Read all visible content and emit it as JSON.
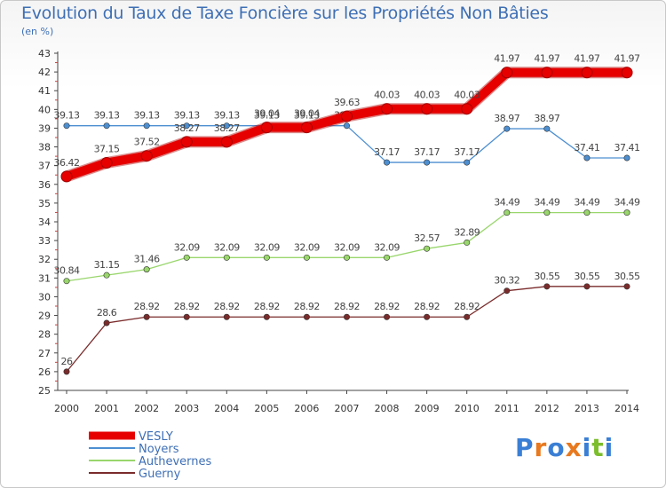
{
  "header": {
    "title": "Evolution du Taux de Taxe Foncière sur les Propriétés Non Bâties",
    "subtitle": "(en %)"
  },
  "logo": {
    "letters": [
      "P",
      "r",
      "o",
      "x",
      "i",
      "t",
      "i"
    ],
    "colors": [
      "#3a7fd5",
      "#e8791e",
      "#3a7fd5",
      "#e8791e",
      "#3a7fd5",
      "#7bbd2b",
      "#3a7fd5"
    ]
  },
  "chart_data": {
    "type": "line",
    "title": "Evolution du Taux de Taxe Foncière sur les Propriétés Non Bâties",
    "ylabel": "(en %)",
    "xlabel": "",
    "ylim": [
      25,
      43
    ],
    "yticks": [
      "25",
      "26",
      "27",
      "28",
      "29",
      "30",
      "31",
      "32",
      "33",
      "34",
      "35",
      "36",
      "37",
      "38",
      "39",
      "40",
      "41",
      "42",
      "43"
    ],
    "categories": [
      "2000",
      "2001",
      "2002",
      "2003",
      "2004",
      "2005",
      "2006",
      "2007",
      "2008",
      "2009",
      "2010",
      "2011",
      "2012",
      "2013",
      "2014"
    ],
    "grid": false,
    "legend_position": "bottom-left",
    "series": [
      {
        "name": "VESLY",
        "color": "#e60000",
        "values": [
          36.42,
          37.15,
          37.52,
          38.27,
          38.27,
          39.04,
          39.04,
          39.63,
          40.03,
          40.03,
          40.03,
          41.97,
          41.97,
          41.97,
          41.97
        ],
        "labels": [
          "36.42",
          "37.15",
          "37.52",
          "38.27",
          "38.27",
          "39.04",
          "39.04",
          "39.63",
          "40.03",
          "40.03",
          "40.03",
          "41.97",
          "41.97",
          "41.97",
          "41.97"
        ]
      },
      {
        "name": "Noyers",
        "color": "#4d8fd1",
        "values": [
          39.13,
          39.13,
          39.13,
          39.13,
          39.13,
          39.13,
          39.13,
          39.13,
          37.17,
          37.17,
          37.17,
          38.97,
          38.97,
          37.41,
          37.41
        ],
        "labels": [
          "39.13",
          "39.13",
          "39.13",
          "39.13",
          "39.13",
          "39.13",
          "39.13",
          "39.13",
          "37.17",
          "37.17",
          "37.17",
          "38.97",
          "38.97",
          "37.41",
          "37.41"
        ]
      },
      {
        "name": "Authevernes",
        "color": "#99d66c",
        "values": [
          30.84,
          31.15,
          31.46,
          32.09,
          32.09,
          32.09,
          32.09,
          32.09,
          32.09,
          32.57,
          32.89,
          34.49,
          34.49,
          34.49,
          34.49
        ],
        "labels": [
          "30.84",
          "31.15",
          "31.46",
          "32.09",
          "32.09",
          "32.09",
          "32.09",
          "32.09",
          "32.09",
          "32.57",
          "32.89",
          "34.49",
          "34.49",
          "34.49",
          "34.49"
        ]
      },
      {
        "name": "Guerny",
        "color": "#7a2b2b",
        "values": [
          26,
          28.6,
          28.92,
          28.92,
          28.92,
          28.92,
          28.92,
          28.92,
          28.92,
          28.92,
          28.92,
          30.32,
          30.55,
          30.55,
          30.55
        ],
        "labels": [
          "26",
          "28.6",
          "28.92",
          "28.92",
          "28.92",
          "28.92",
          "28.92",
          "28.92",
          "28.92",
          "28.92",
          "28.92",
          "30.32",
          "30.55",
          "30.55",
          "30.55"
        ]
      }
    ]
  }
}
